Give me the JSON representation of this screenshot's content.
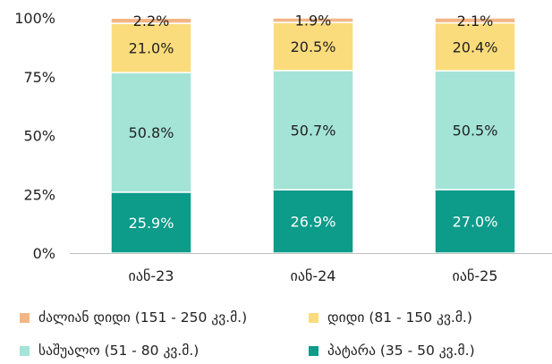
{
  "chart_data": {
    "type": "bar",
    "stacked": true,
    "percent": true,
    "categories": [
      "იან-23",
      "იან-24",
      "იან-25"
    ],
    "yticks": [
      "0%",
      "25%",
      "50%",
      "75%",
      "100%"
    ],
    "ylim": [
      0,
      100
    ],
    "series": [
      {
        "name": "პატარა (35 - 50 კვ.მ.)",
        "color": "#0d9b8a",
        "label_color": "#ffffff",
        "values": [
          25.9,
          26.9,
          27.0
        ],
        "labels": [
          "25.9%",
          "26.9%",
          "27.0%"
        ]
      },
      {
        "name": "საშუალო (51 - 80 კვ.მ.)",
        "color": "#a3e4d7",
        "label_color": "#222222",
        "values": [
          50.8,
          50.7,
          50.5
        ],
        "labels": [
          "50.8%",
          "50.7%",
          "50.5%"
        ]
      },
      {
        "name": "დიდი (81 - 150 კვ.მ.)",
        "color": "#fbdc7c",
        "label_color": "#222222",
        "values": [
          21.0,
          20.5,
          20.4
        ],
        "labels": [
          "21.0%",
          "20.5%",
          "20.4%"
        ]
      },
      {
        "name": "ძალიან დიდი (151 - 250 კვ.მ.)",
        "color": "#f3b585",
        "label_color": "#222222",
        "values": [
          2.2,
          1.9,
          2.1
        ],
        "labels": [
          "2.2%",
          "1.9%",
          "2.1%"
        ]
      }
    ],
    "legend_position": "bottom",
    "grid": false
  }
}
